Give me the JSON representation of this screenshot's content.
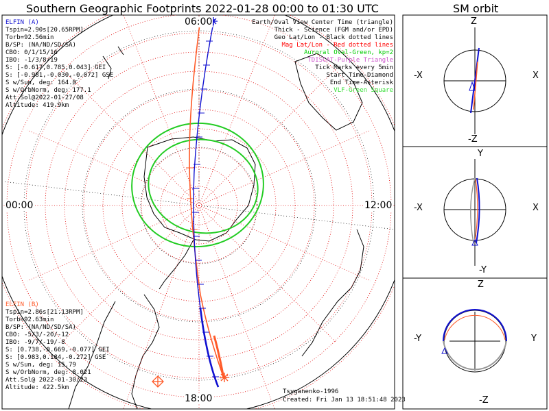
{
  "title": "Southern Geographic Footprints 2022-01-28 00:00 to 01:30 UTC",
  "sm_title": "SM orbit",
  "hours": {
    "top": "06:00",
    "left": "00:00",
    "right": "12:00",
    "bottom": "18:00"
  },
  "elfin_a": {
    "name": "ELFIN (A)",
    "color": "#1010d0",
    "lines": [
      "Tspin=2.90s[20.65RPM]",
      "Torb=92.56min",
      "B/SP: (NA/ND/SD/SA)",
      "CBO: 0/1/15/16",
      "IBO: -1/3/8/19",
      "S: [-0.617,0.785,0.043] GEI",
      "S: [-0.981,-0.030,-0.072] GSE",
      "S w/Sun, deg: 164.0",
      "S w/OrbNorm, deg: 177.1",
      "Att.Sol@2022-01-27/08",
      "Altitude: 419.9km"
    ]
  },
  "elfin_b": {
    "name": "ELFIN (B)",
    "color": "#ff5a28",
    "lines": [
      "Tspin=2.86s[21.13RPM]",
      "Torb=92.63min",
      "B/SP: (NA/ND/SD/SA)",
      "CBO: -5/3/-20/-12",
      "IBO: -9/7/-19/-8",
      "S: [0.738,-0.669,-0.077] GEI",
      "S: [0.983,0.184,-0.272] GSE",
      "S w/Sun, deg: 15.79",
      "S w/OrbNorm, deg: 8.021",
      "Att.Sol@ 2022-01-30/23",
      "Altitude: 422.5km"
    ]
  },
  "legend": [
    {
      "text": "Earth/Oval View Center Time (triangle)",
      "color": "#000000"
    },
    {
      "text": "Thick - Science (FGM and/or EPD)",
      "color": "#000000"
    },
    {
      "text": "Geo Lat/Lon - Black dotted lines",
      "color": "#000000"
    },
    {
      "text": "Mag Lat/Lon - Red dotted lines",
      "color": "#ff0000"
    },
    {
      "text": "Auroral Oval-Green, kp=2",
      "color": "#00cc00"
    },
    {
      "text": "TDISCAT-Purple Triangle",
      "color": "#cc55cc"
    },
    {
      "text": "Tick Marks every 5min",
      "color": "#000000"
    },
    {
      "text": "Start Time-Diamond",
      "color": "#000000"
    },
    {
      "text": "End Time-Asterisk",
      "color": "#000000"
    },
    {
      "text": "VLF-Green Square",
      "color": "#33dd33"
    }
  ],
  "footer": {
    "model": "Tsyganenko-1996",
    "created": "Created: Fri Jan 13 18:51:48 2023"
  },
  "sm_panels": [
    {
      "top": "Z",
      "bottom": "-Z",
      "left": "-X",
      "right": "X"
    },
    {
      "top": "Y",
      "bottom": "-Y",
      "left": "-X",
      "right": "X"
    },
    {
      "top": "Z",
      "bottom": "-Z",
      "left": "-Y",
      "right": "Y"
    }
  ]
}
